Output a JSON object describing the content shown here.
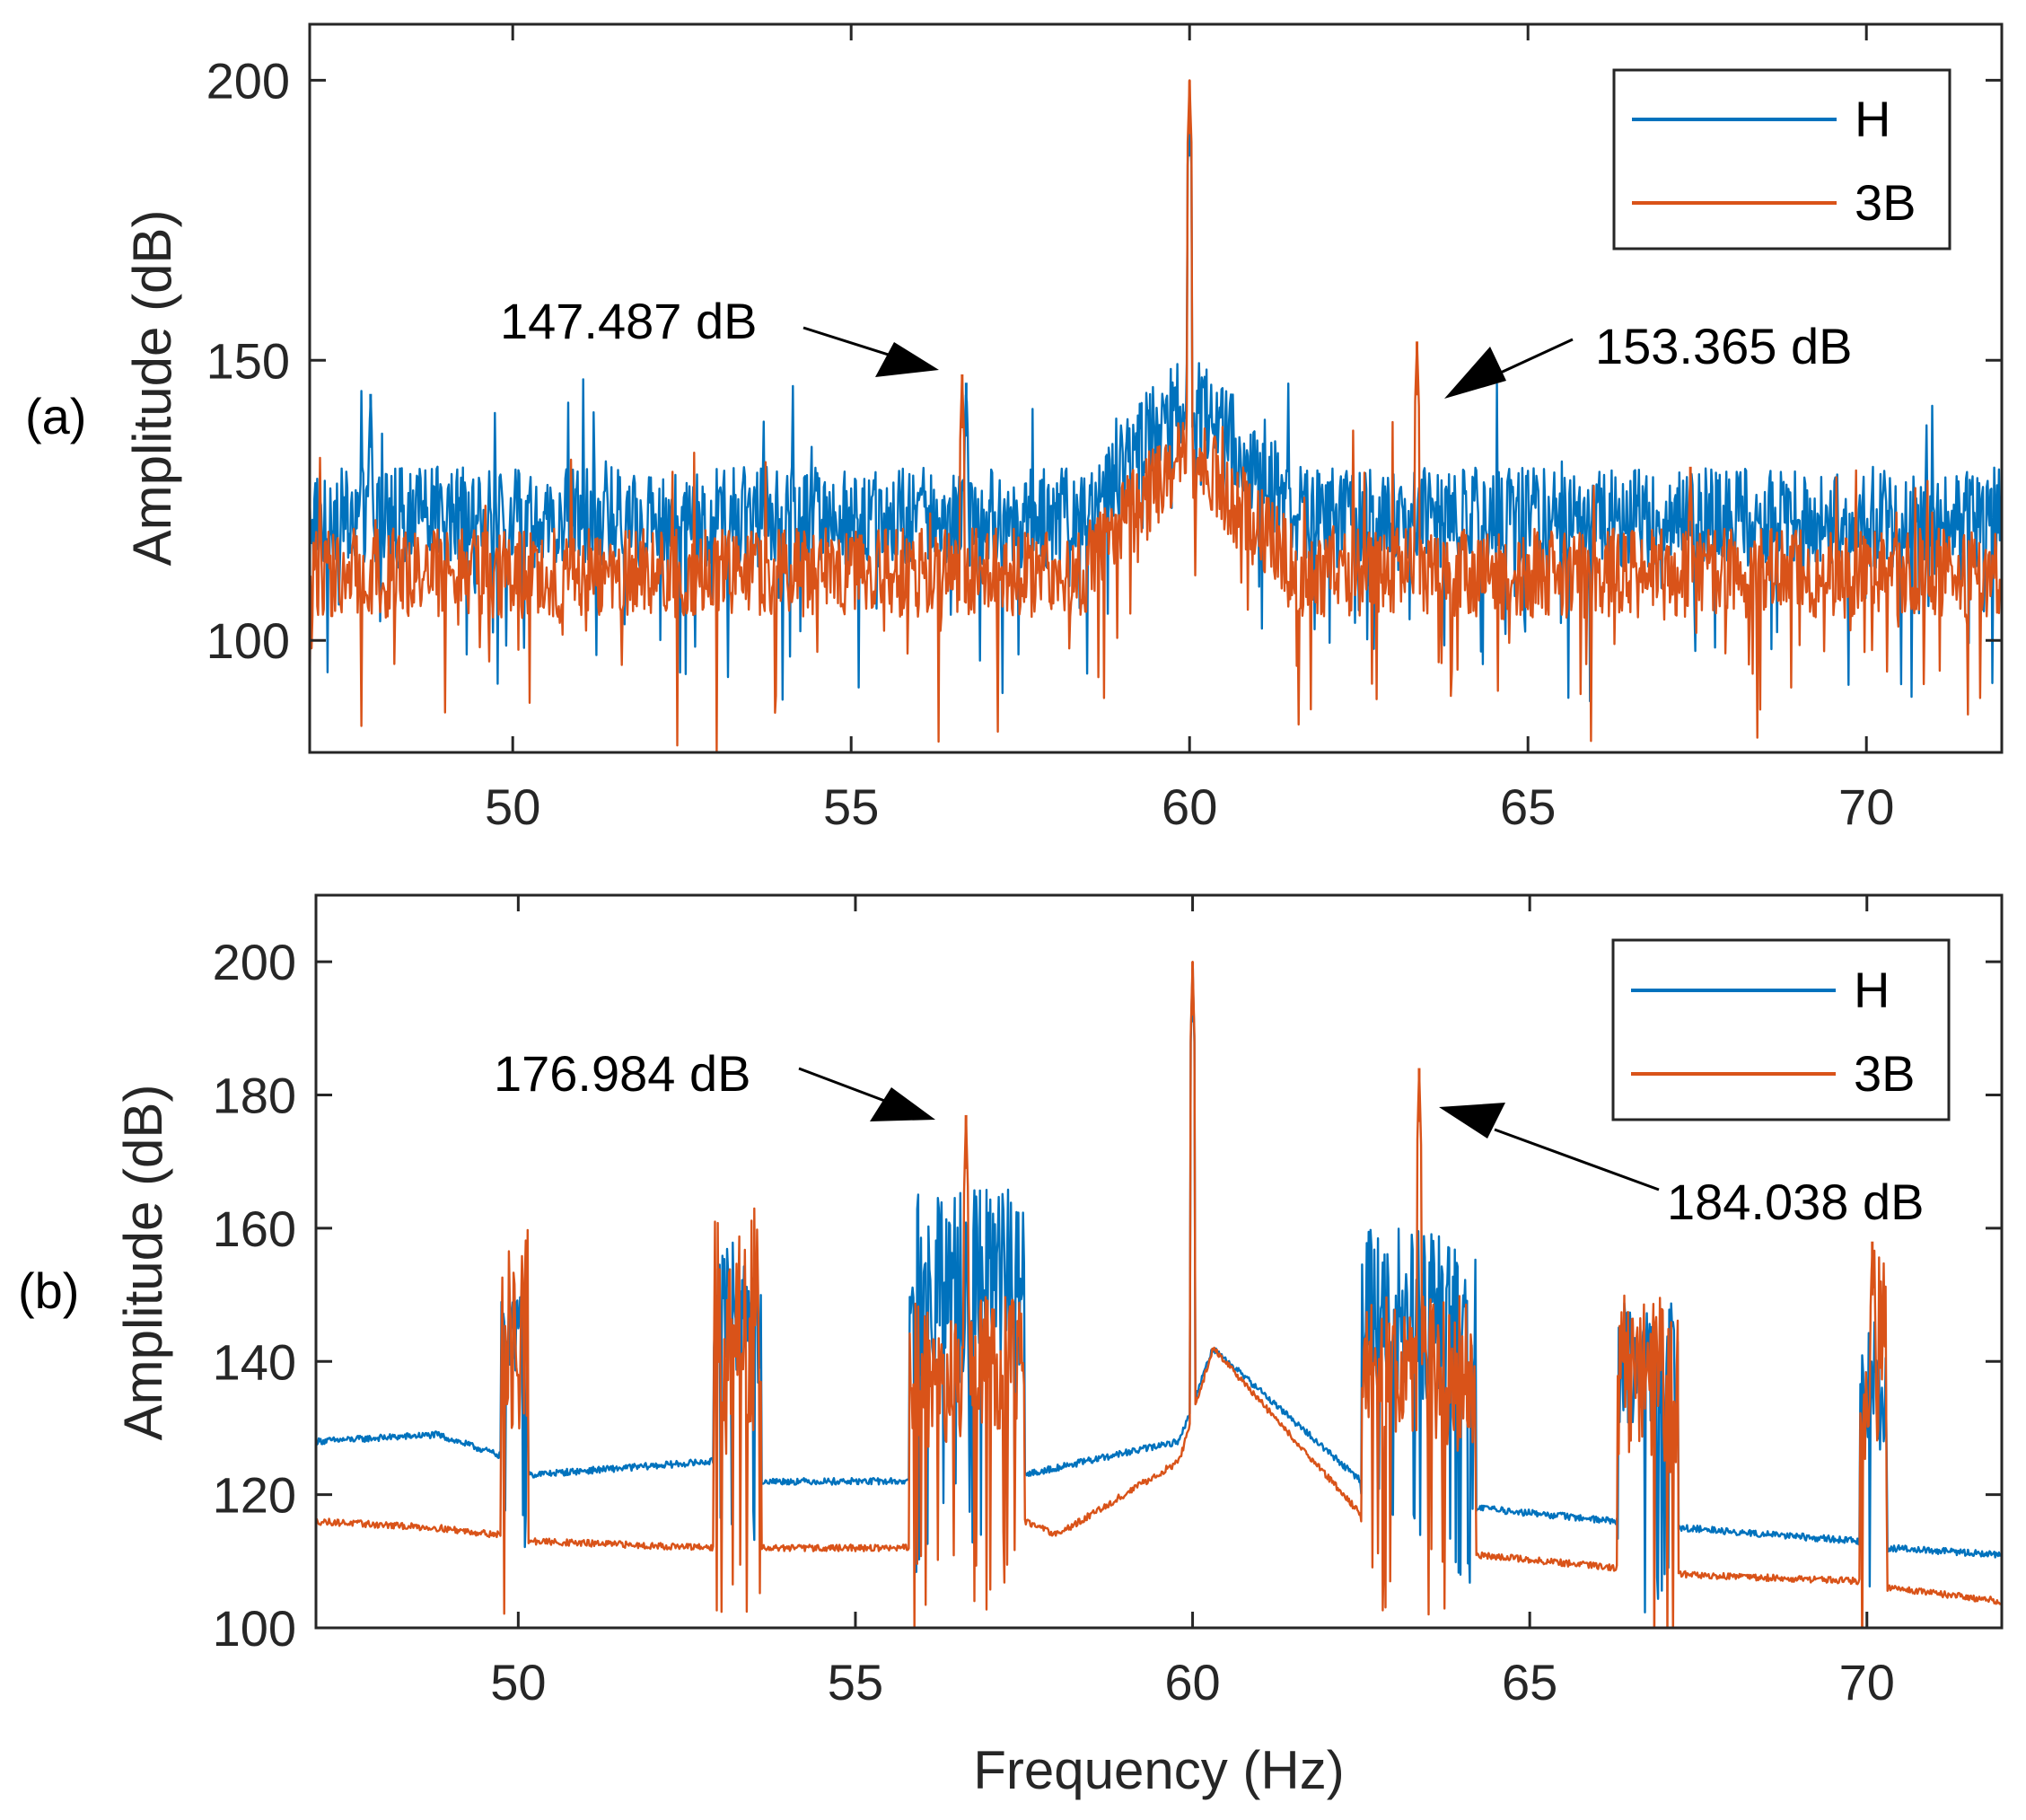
{
  "chart_data": [
    {
      "panel_label": "(a)",
      "type": "line",
      "xlabel": "",
      "ylabel": "Amplitude (dB)",
      "xlim": [
        47,
        72
      ],
      "ylim": [
        80,
        210
      ],
      "xticks": [
        "50",
        "55",
        "60",
        "65",
        "70"
      ],
      "xtick_values": [
        50,
        55,
        60,
        65,
        70
      ],
      "yticks": [
        "100",
        "150",
        "200"
      ],
      "ytick_values": [
        100,
        150,
        200
      ],
      "legend": {
        "position": "top-right",
        "entries": [
          "H",
          "3B"
        ]
      },
      "series": [
        {
          "name": "H",
          "color": "#0072BD",
          "noise_floor_db": 122,
          "noise_range_db": 18,
          "peaks": [
            {
              "x": 60.0,
              "y": 196
            },
            {
              "x": 47.9,
              "y": 144
            },
            {
              "x": 56.7,
              "y": 146
            }
          ]
        },
        {
          "name": "3B",
          "color": "#D95319",
          "noise_floor_db": 112,
          "noise_range_db": 16,
          "peaks": [
            {
              "x": 60.0,
              "y": 200
            },
            {
              "x": 56.64,
              "y": 147.487
            },
            {
              "x": 63.36,
              "y": 153.365
            },
            {
              "x": 67.4,
              "y": 131
            }
          ]
        }
      ],
      "annotations": [
        {
          "text": "147.487 dB",
          "x": 56.64,
          "y": 147.487
        },
        {
          "text": "153.365 dB",
          "x": 63.36,
          "y": 153.365
        }
      ]
    },
    {
      "panel_label": "(b)",
      "type": "line",
      "xlabel": "Frequency (Hz)",
      "ylabel": "Amplitude (dB)",
      "xlim": [
        47,
        72
      ],
      "ylim": [
        100,
        210
      ],
      "xticks": [
        "50",
        "55",
        "60",
        "65",
        "70"
      ],
      "xtick_values": [
        50,
        55,
        60,
        65,
        70
      ],
      "yticks": [
        "100",
        "120",
        "140",
        "160",
        "180",
        "200"
      ],
      "ytick_values": [
        100,
        120,
        140,
        160,
        180,
        200
      ],
      "legend": {
        "position": "top-right",
        "entries": [
          "H",
          "3B"
        ]
      },
      "series": [
        {
          "name": "H",
          "color": "#0072BD",
          "baseline": [
            {
              "x": 47.0,
              "y": 128
            },
            {
              "x": 48.8,
              "y": 129
            },
            {
              "x": 49.7,
              "y": 126
            },
            {
              "x": 50.2,
              "y": 123
            },
            {
              "x": 52.9,
              "y": 125
            },
            {
              "x": 53.6,
              "y": 122
            },
            {
              "x": 55.8,
              "y": 122
            },
            {
              "x": 57.5,
              "y": 123
            },
            {
              "x": 59.8,
              "y": 128
            },
            {
              "x": 60.3,
              "y": 142
            },
            {
              "x": 62.5,
              "y": 122
            },
            {
              "x": 64.2,
              "y": 118
            },
            {
              "x": 66.3,
              "y": 116
            },
            {
              "x": 67.3,
              "y": 115
            },
            {
              "x": 69.9,
              "y": 113
            },
            {
              "x": 70.3,
              "y": 112
            },
            {
              "x": 72.0,
              "y": 111
            }
          ],
          "bursts": [
            {
              "x0": 49.75,
              "x1": 50.15,
              "peak": 152
            },
            {
              "x0": 52.9,
              "x1": 53.6,
              "peak": 158
            },
            {
              "x0": 55.8,
              "x1": 57.5,
              "peak": 166
            },
            {
              "x0": 62.5,
              "x1": 64.2,
              "peak": 160
            },
            {
              "x0": 66.3,
              "x1": 67.2,
              "peak": 149
            },
            {
              "x0": 69.9,
              "x1": 70.3,
              "peak": 146
            }
          ],
          "peaks": [
            {
              "x": 60.0,
              "y": 199
            }
          ]
        },
        {
          "name": "3B",
          "color": "#D95319",
          "baseline": [
            {
              "x": 47.0,
              "y": 116
            },
            {
              "x": 48.8,
              "y": 115
            },
            {
              "x": 49.7,
              "y": 114
            },
            {
              "x": 50.2,
              "y": 113
            },
            {
              "x": 52.9,
              "y": 112
            },
            {
              "x": 53.6,
              "y": 112
            },
            {
              "x": 55.8,
              "y": 112
            },
            {
              "x": 57.5,
              "y": 116
            },
            {
              "x": 58.0,
              "y": 114
            },
            {
              "x": 59.8,
              "y": 125
            },
            {
              "x": 60.3,
              "y": 142
            },
            {
              "x": 61.8,
              "y": 125
            },
            {
              "x": 62.5,
              "y": 117
            },
            {
              "x": 64.2,
              "y": 111
            },
            {
              "x": 66.3,
              "y": 109
            },
            {
              "x": 67.3,
              "y": 108
            },
            {
              "x": 69.9,
              "y": 107
            },
            {
              "x": 70.3,
              "y": 106
            },
            {
              "x": 72.0,
              "y": 104
            }
          ],
          "bursts": [
            {
              "x0": 49.75,
              "x1": 50.15,
              "peak": 160
            },
            {
              "x0": 52.9,
              "x1": 53.6,
              "peak": 165
            },
            {
              "x0": 55.8,
              "x1": 57.5,
              "peak": 150
            },
            {
              "x0": 62.5,
              "x1": 64.2,
              "peak": 150
            },
            {
              "x0": 66.3,
              "x1": 67.2,
              "peak": 150
            },
            {
              "x0": 69.9,
              "x1": 70.3,
              "peak": 158
            }
          ],
          "peaks": [
            {
              "x": 60.0,
              "y": 200
            },
            {
              "x": 56.64,
              "y": 176.984
            },
            {
              "x": 63.36,
              "y": 184.038
            },
            {
              "x": 70.08,
              "y": 158
            }
          ]
        }
      ],
      "annotations": [
        {
          "text": "176.984 dB",
          "x": 56.64,
          "y": 176.984
        },
        {
          "text": "184.038 dB",
          "x": 63.36,
          "y": 184.038
        }
      ]
    }
  ]
}
